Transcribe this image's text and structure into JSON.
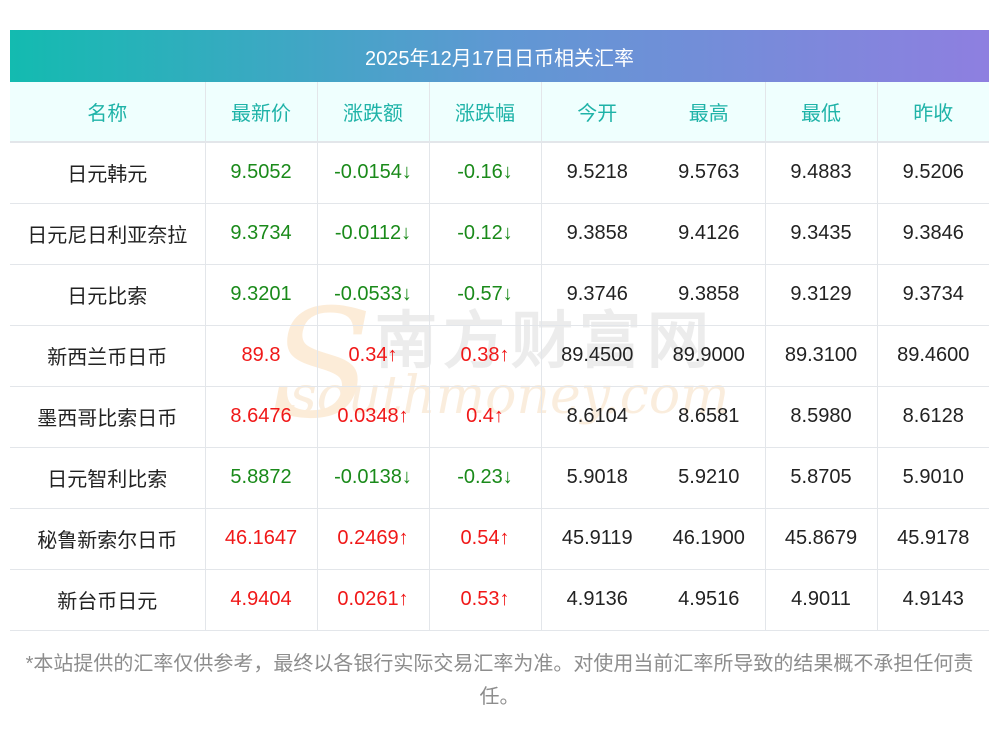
{
  "title": "2025年12月17日日币相关汇率",
  "headers": [
    "名称",
    "最新价",
    "涨跌额",
    "涨跌幅",
    "今开",
    "最高",
    "最低",
    "昨收"
  ],
  "rows": [
    {
      "name": "日元韩元",
      "price": "9.5052",
      "chg": "-0.0154↓",
      "pct": "-0.16↓",
      "open": "9.5218",
      "high": "9.5763",
      "low": "9.4883",
      "prev": "9.5206",
      "dir": "down"
    },
    {
      "name": "日元尼日利亚奈拉",
      "price": "9.3734",
      "chg": "-0.0112↓",
      "pct": "-0.12↓",
      "open": "9.3858",
      "high": "9.4126",
      "low": "9.3435",
      "prev": "9.3846",
      "dir": "down"
    },
    {
      "name": "日元比索",
      "price": "9.3201",
      "chg": "-0.0533↓",
      "pct": "-0.57↓",
      "open": "9.3746",
      "high": "9.3858",
      "low": "9.3129",
      "prev": "9.3734",
      "dir": "down"
    },
    {
      "name": "新西兰币日币",
      "price": "89.8",
      "chg": "0.34↑",
      "pct": "0.38↑",
      "open": "89.4500",
      "high": "89.9000",
      "low": "89.3100",
      "prev": "89.4600",
      "dir": "up"
    },
    {
      "name": "墨西哥比索日币",
      "price": "8.6476",
      "chg": "0.0348↑",
      "pct": "0.4↑",
      "open": "8.6104",
      "high": "8.6581",
      "low": "8.5980",
      "prev": "8.6128",
      "dir": "up"
    },
    {
      "name": "日元智利比索",
      "price": "5.8872",
      "chg": "-0.0138↓",
      "pct": "-0.23↓",
      "open": "5.9018",
      "high": "5.9210",
      "low": "5.8705",
      "prev": "5.9010",
      "dir": "down"
    },
    {
      "name": "秘鲁新索尔日币",
      "price": "46.1647",
      "chg": "0.2469↑",
      "pct": "0.54↑",
      "open": "45.9119",
      "high": "46.1900",
      "low": "45.8679",
      "prev": "45.9178",
      "dir": "up"
    },
    {
      "name": "新台币日元",
      "price": "4.9404",
      "chg": "0.0261↑",
      "pct": "0.53↑",
      "open": "4.9136",
      "high": "4.9516",
      "low": "4.9011",
      "prev": "4.9143",
      "dir": "up"
    }
  ],
  "note": "*本站提供的汇率仅供参考，最终以各银行实际交易汇率为准。对使用当前汇率所导致的结果概不承担任何责任。",
  "watermark": {
    "cn": "南方财富网",
    "en": "southmoney.com"
  },
  "colors": {
    "up": "#f01818",
    "down": "#1a8a1a",
    "header_text": "#1fb3a8"
  }
}
